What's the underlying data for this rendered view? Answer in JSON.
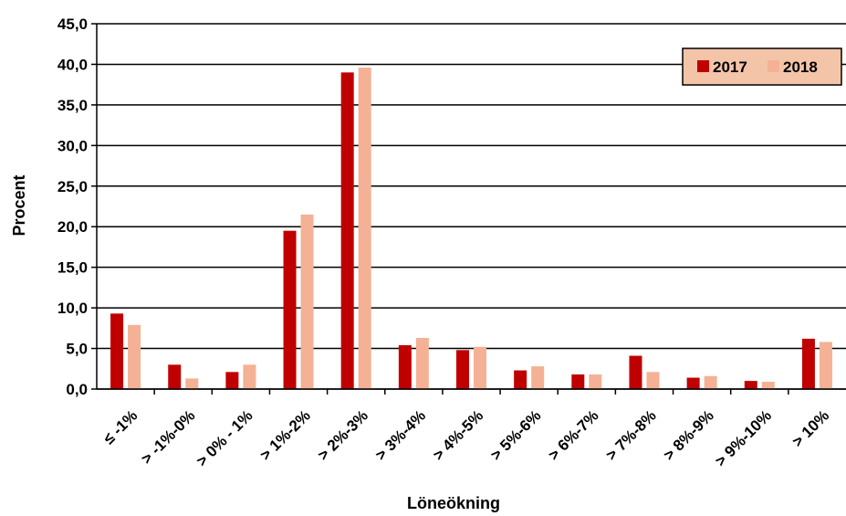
{
  "chart_data": {
    "type": "bar",
    "title": "",
    "xlabel": "Löneökning",
    "ylabel": "Procent",
    "ylim": [
      0,
      45
    ],
    "yticks": [
      "0,0",
      "5,0",
      "10,0",
      "15,0",
      "20,0",
      "25,0",
      "30,0",
      "35,0",
      "40,0",
      "45,0"
    ],
    "categories": [
      "≤ -1%",
      "> -1%-0%",
      "> 0% - 1%",
      "> 1%-2%",
      "> 2%-3%",
      "> 3%-4%",
      "> 4%-5%",
      "> 5%-6%",
      "> 6%-7%",
      "> 7%-8%",
      "> 8%-9%",
      "> 9%-10%",
      "> 10%"
    ],
    "series": [
      {
        "name": "2017",
        "color": "#c00000",
        "values": [
          9.3,
          3.0,
          2.1,
          19.5,
          39.0,
          5.4,
          4.8,
          2.3,
          1.8,
          4.1,
          1.4,
          1.0,
          6.2
        ]
      },
      {
        "name": "2018",
        "color": "#f4b196",
        "values": [
          7.9,
          1.3,
          3.0,
          21.5,
          39.6,
          6.3,
          5.2,
          2.8,
          1.8,
          2.1,
          1.6,
          0.9,
          5.8
        ]
      }
    ],
    "grid": true,
    "legend_position": "top-right",
    "legend_background": "#f4c4a8"
  }
}
